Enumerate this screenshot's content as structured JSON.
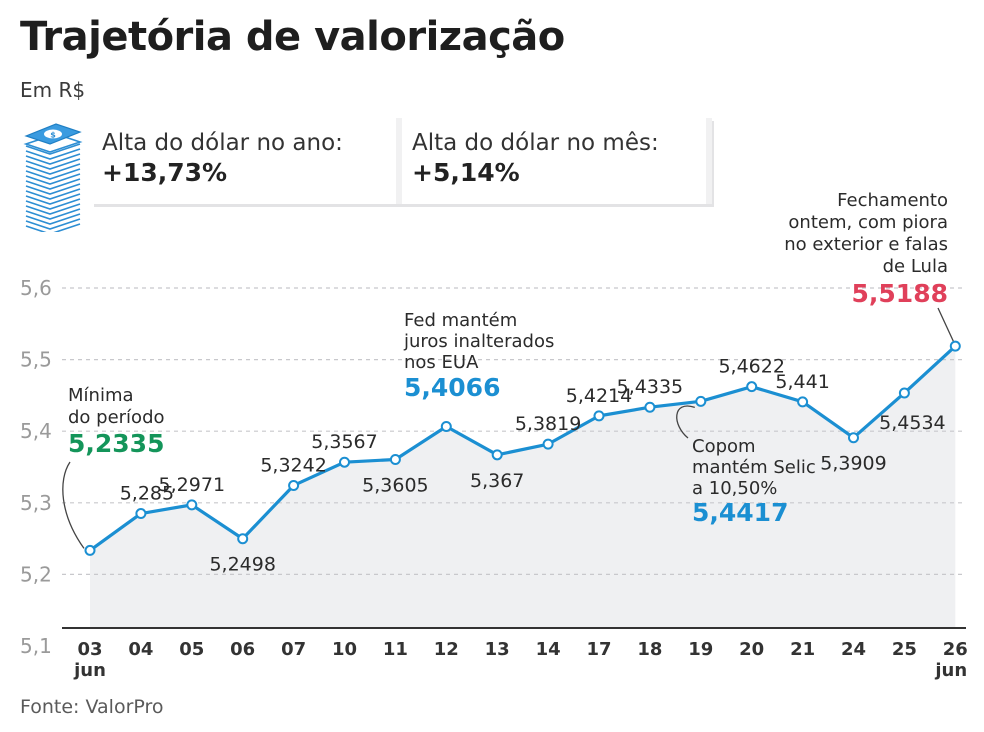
{
  "header": {
    "title": "Trajetória de valorização",
    "subtitle": "Em R$"
  },
  "stats": [
    {
      "label": "Alta do dólar no ano:",
      "value": "+13,73%"
    },
    {
      "label": "Alta do dólar no mês:",
      "value": "+5,14%"
    }
  ],
  "source": "Fonte: ValorPro",
  "icon": "money-stack-icon",
  "colors": {
    "line": "#1b8fd2",
    "area": "#eff0f2",
    "grid": "#c8c8cc",
    "green": "#14955a",
    "blue": "#1b8fd2",
    "red": "#e0405a",
    "text": "#2b2b2b"
  },
  "chart_data": {
    "type": "line",
    "ylim": [
      5.1,
      5.6
    ],
    "yticks": [
      "5,1",
      "5,2",
      "5,3",
      "5,4",
      "5,5",
      "5,6"
    ],
    "categories": [
      "03",
      "04",
      "05",
      "06",
      "07",
      "10",
      "11",
      "12",
      "13",
      "14",
      "17",
      "18",
      "19",
      "20",
      "21",
      "24",
      "25",
      "26"
    ],
    "month_label": "jun",
    "values": [
      5.2335,
      5.285,
      5.2971,
      5.2498,
      5.3242,
      5.3567,
      5.3605,
      5.4066,
      5.367,
      5.3819,
      5.4214,
      5.4335,
      5.4417,
      5.4622,
      5.441,
      5.3909,
      5.4534,
      5.5188
    ],
    "labels": [
      "5,2335",
      "5,285",
      "5,2971",
      "5,2498",
      "5,3242",
      "5,3567",
      "5,3605",
      "5,4066",
      "5,367",
      "5,3819",
      "5,4214",
      "5,4335",
      "5,4417",
      "5,4622",
      "5,441",
      "5,3909",
      "5,4534",
      "5,5188"
    ],
    "annotations": [
      {
        "index": 0,
        "text": [
          "Mínima",
          "do período"
        ],
        "color": "green"
      },
      {
        "index": 7,
        "text": [
          "Fed mantém",
          "juros inalterados",
          "nos EUA"
        ],
        "color": "blue"
      },
      {
        "index": 12,
        "text": [
          "Copom",
          "mantém Selic",
          "a 10,50%"
        ],
        "color": "blue"
      },
      {
        "index": 17,
        "text": [
          "Fechamento",
          "ontem, com piora",
          "no exterior e falas",
          "de Lula"
        ],
        "color": "red"
      }
    ]
  }
}
